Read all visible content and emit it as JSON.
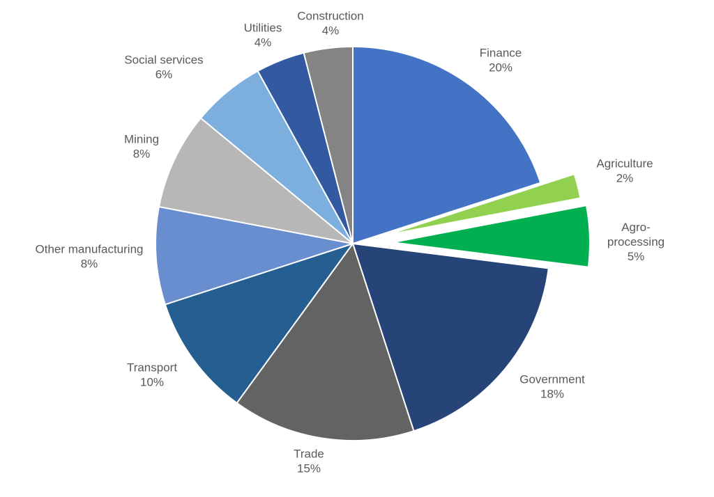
{
  "chart_data": {
    "type": "pie",
    "title": "",
    "start_angle": "12 o'clock",
    "direction": "clockwise",
    "slices": [
      {
        "label": "Finance",
        "value": 20,
        "display": "20%",
        "color": "#4472C4",
        "exploded": false
      },
      {
        "label": "Agriculture",
        "value": 2,
        "display": "2%",
        "color": "#92D050",
        "exploded": true
      },
      {
        "label": "Agro-\nprocessing",
        "value": 5,
        "display": "5%",
        "color": "#00B050",
        "exploded": true
      },
      {
        "label": "Government",
        "value": 18,
        "display": "18%",
        "color": "#264478",
        "exploded": false
      },
      {
        "label": "Trade",
        "value": 15,
        "display": "15%",
        "color": "#636363",
        "exploded": false
      },
      {
        "label": "Transport",
        "value": 10,
        "display": "10%",
        "color": "#255E91",
        "exploded": false
      },
      {
        "label": "Other manufacturing",
        "value": 8,
        "display": "8%",
        "color": "#698ED0",
        "exploded": false
      },
      {
        "label": "Mining",
        "value": 8,
        "display": "8%",
        "color": "#B7B7B7",
        "exploded": false
      },
      {
        "label": "Social services",
        "value": 6,
        "display": "6%",
        "color": "#7CAFDD",
        "exploded": false
      },
      {
        "label": "Utilities",
        "value": 4,
        "display": "4%",
        "color": "#335AA1",
        "exploded": false
      },
      {
        "label": "Construction",
        "value": 4,
        "display": "4%",
        "color": "#848484",
        "exploded": false
      }
    ]
  }
}
